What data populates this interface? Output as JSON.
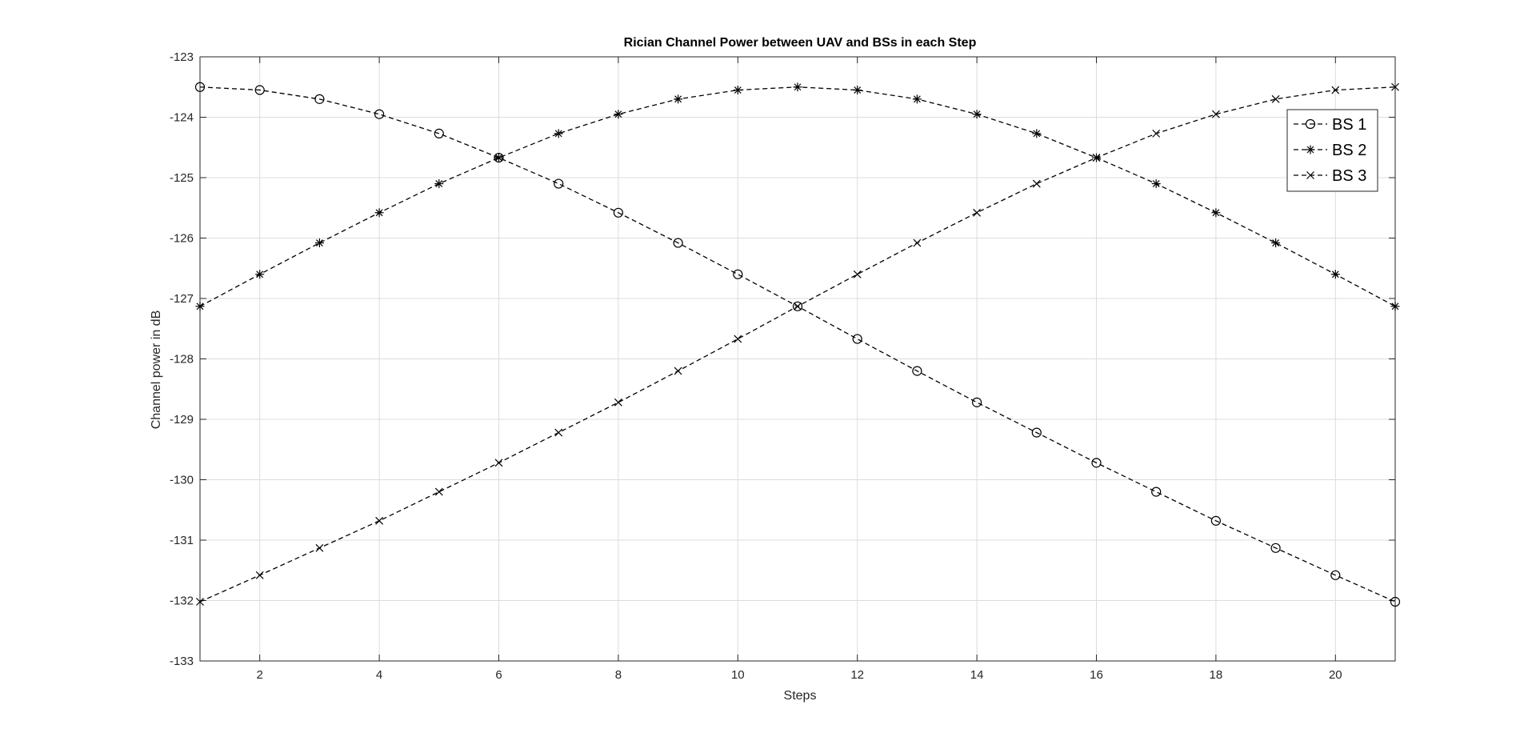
{
  "chart_data": {
    "type": "line",
    "title": "Rician Channel Power between UAV and BSs in each Step",
    "xlabel": "Steps",
    "ylabel": "Channel power in dB",
    "xlim": [
      1,
      21
    ],
    "ylim": [
      -133,
      -123
    ],
    "xticks": [
      2,
      4,
      6,
      8,
      10,
      12,
      14,
      16,
      18,
      20
    ],
    "yticks": [
      -133,
      -132,
      -131,
      -130,
      -129,
      -128,
      -127,
      -126,
      -125,
      -124,
      -123
    ],
    "grid": true,
    "legend_position": "top-right",
    "x": [
      1,
      2,
      3,
      4,
      5,
      6,
      7,
      8,
      9,
      10,
      11,
      12,
      13,
      14,
      15,
      16,
      17,
      18,
      19,
      20,
      21
    ],
    "series": [
      {
        "name": "BS 1",
        "marker": "circle",
        "line_style": "dashed",
        "color": "#000000",
        "values": [
          -123.5,
          -123.55,
          -123.7,
          -123.95,
          -124.27,
          -124.67,
          -125.1,
          -125.58,
          -126.08,
          -126.6,
          -127.13,
          -127.67,
          -128.2,
          -128.72,
          -129.22,
          -129.72,
          -130.2,
          -130.68,
          -131.13,
          -131.58,
          -132.02
        ]
      },
      {
        "name": "BS 2",
        "marker": "asterisk",
        "line_style": "dashed",
        "color": "#000000",
        "values": [
          -127.13,
          -126.6,
          -126.08,
          -125.58,
          -125.1,
          -124.67,
          -124.27,
          -123.95,
          -123.7,
          -123.55,
          -123.5,
          -123.55,
          -123.7,
          -123.95,
          -124.27,
          -124.67,
          -125.1,
          -125.58,
          -126.08,
          -126.6,
          -127.13
        ]
      },
      {
        "name": "BS 3",
        "marker": "x",
        "line_style": "dashed",
        "color": "#000000",
        "values": [
          -132.02,
          -131.58,
          -131.13,
          -130.68,
          -130.2,
          -129.72,
          -129.22,
          -128.72,
          -128.2,
          -127.67,
          -127.13,
          -126.6,
          -126.08,
          -125.58,
          -125.1,
          -124.67,
          -124.27,
          -123.95,
          -123.7,
          -123.55,
          -123.5
        ]
      }
    ]
  }
}
